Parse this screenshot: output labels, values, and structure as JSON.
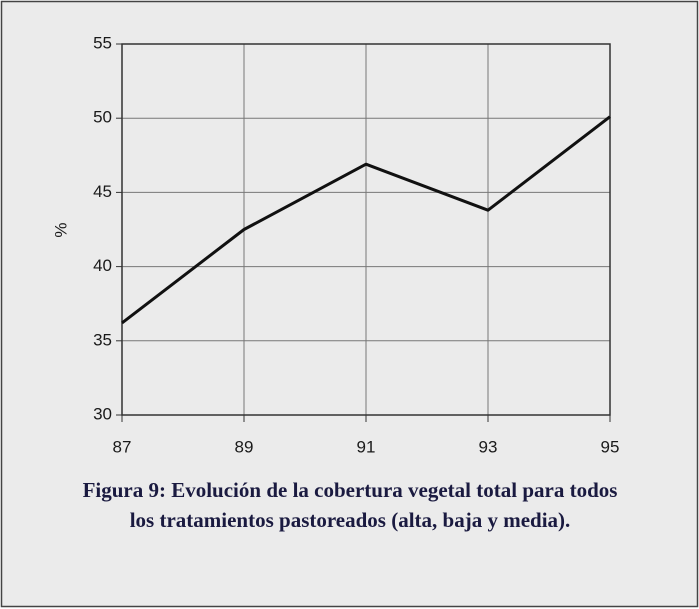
{
  "chart_data": {
    "type": "line",
    "categories": [
      "87",
      "89",
      "91",
      "93",
      "95"
    ],
    "series": [
      {
        "values": [
          36.2,
          42.5,
          46.9,
          43.8,
          50.1
        ],
        "color": "#111111"
      }
    ],
    "ylim": [
      30,
      55
    ],
    "yticks": [
      30,
      35,
      40,
      45,
      50,
      55
    ],
    "grid": true,
    "ylabel": "%",
    "caption": [
      "Figura 9: Evolución de la cobertura vegetal total para todos",
      "los tratamientos pastoreados (alta, baja y media)."
    ]
  }
}
